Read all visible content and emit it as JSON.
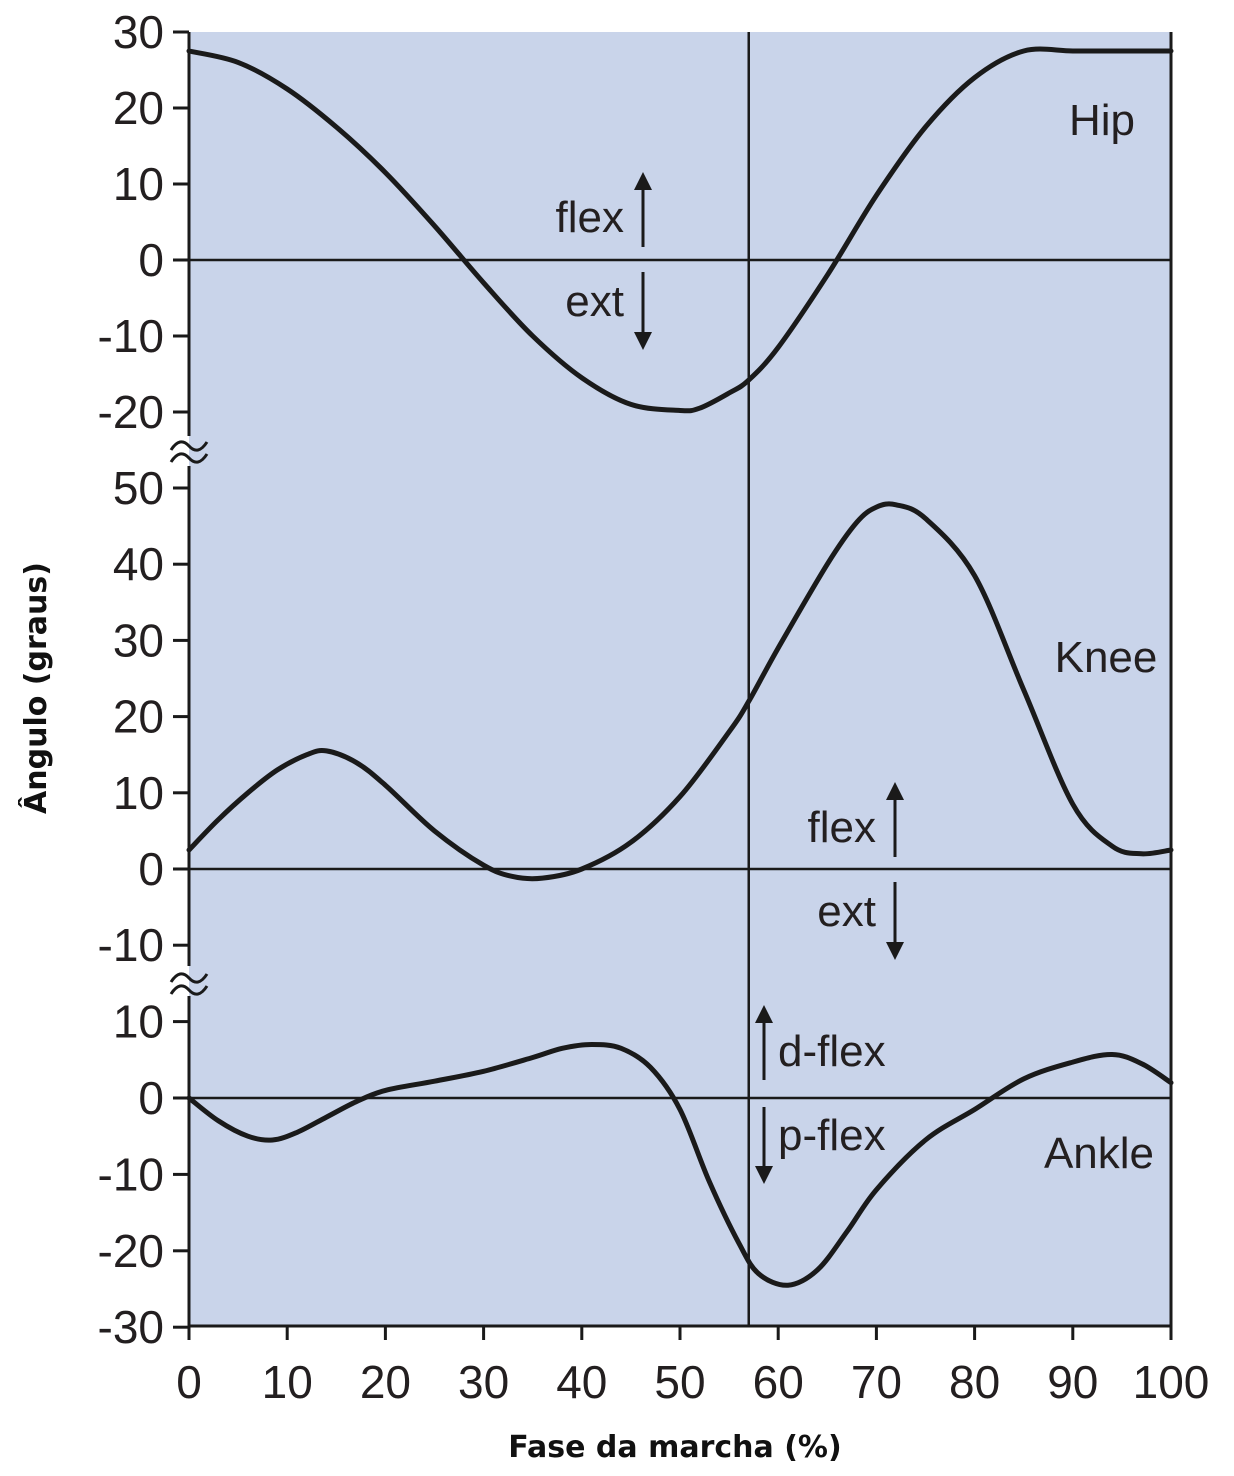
{
  "chart_data": {
    "type": "line",
    "xlabel": "Fase da marcha (%)",
    "ylabel": "Ângulo (graus)",
    "xlim": [
      0,
      100
    ],
    "x_ticks": [
      "0",
      "10",
      "20",
      "30",
      "40",
      "50",
      "60",
      "70",
      "80",
      "90",
      "100"
    ],
    "vertical_marker_x": 57,
    "background_color": "#c9d4ea",
    "line_color": "#1a1a1a",
    "panels": [
      {
        "name": "Hip",
        "ylim": [
          -20,
          30
        ],
        "y_ticks": [
          "30",
          "20",
          "10",
          "0",
          "-10",
          "-20"
        ],
        "up_label": "flex",
        "down_label": "ext",
        "series": [
          {
            "x": [
              0,
              5,
              10,
              15,
              20,
              25,
              30,
              35,
              40,
              45,
              50,
              52,
              55,
              57,
              60,
              65,
              70,
              75,
              80,
              85,
              90,
              95,
              100
            ],
            "values": [
              27.5,
              26,
              22.5,
              17.5,
              11.5,
              4.5,
              -3,
              -10,
              -15.5,
              -19,
              -19.8,
              -19.5,
              -17.5,
              -15.8,
              -11.5,
              -2,
              8.5,
              17.5,
              24,
              27.5,
              27.5,
              27.5,
              27.5
            ]
          }
        ]
      },
      {
        "name": "Knee",
        "ylim": [
          -10,
          50
        ],
        "y_ticks": [
          "50",
          "40",
          "30",
          "20",
          "10",
          "0",
          "-10"
        ],
        "up_label": "flex",
        "down_label": "ext",
        "series": [
          {
            "x": [
              0,
              3,
              6,
              9,
              12,
              14,
              17,
              20,
              25,
              30,
              33,
              36,
              40,
              45,
              50,
              55,
              57,
              60,
              65,
              68,
              70,
              72,
              75,
              80,
              85,
              90,
              94,
              97,
              100
            ],
            "values": [
              2.5,
              6.5,
              10,
              13,
              15,
              15.5,
              14,
              11,
              5,
              0.5,
              -1,
              -1.2,
              0,
              3.5,
              9.5,
              18,
              22,
              29,
              40,
              45.5,
              47.5,
              47.8,
              46,
              38.5,
              23.5,
              8.5,
              3,
              2,
              2.5
            ]
          }
        ]
      },
      {
        "name": "Ankle",
        "ylim": [
          -30,
          10
        ],
        "y_ticks": [
          "10",
          "0",
          "-10",
          "-20",
          "-30"
        ],
        "up_label": "d-flex",
        "down_label": "p-flex",
        "series": [
          {
            "x": [
              0,
              3,
              6,
              8.5,
              11,
              14,
              17,
              20,
              25,
              30,
              35,
              38,
              41,
              44,
              47,
              50,
              53,
              56,
              58,
              61,
              64,
              67,
              70,
              75,
              80,
              85,
              90,
              94,
              97,
              100
            ],
            "values": [
              0,
              -3,
              -5,
              -5.5,
              -4.5,
              -2.5,
              -0.5,
              1,
              2.2,
              3.5,
              5.3,
              6.5,
              7,
              6.5,
              4,
              -1.5,
              -11,
              -19,
              -23,
              -24.5,
              -22.5,
              -17.5,
              -12,
              -5.5,
              -1.5,
              2.5,
              4.7,
              5.7,
              4.5,
              2
            ]
          }
        ]
      }
    ]
  }
}
